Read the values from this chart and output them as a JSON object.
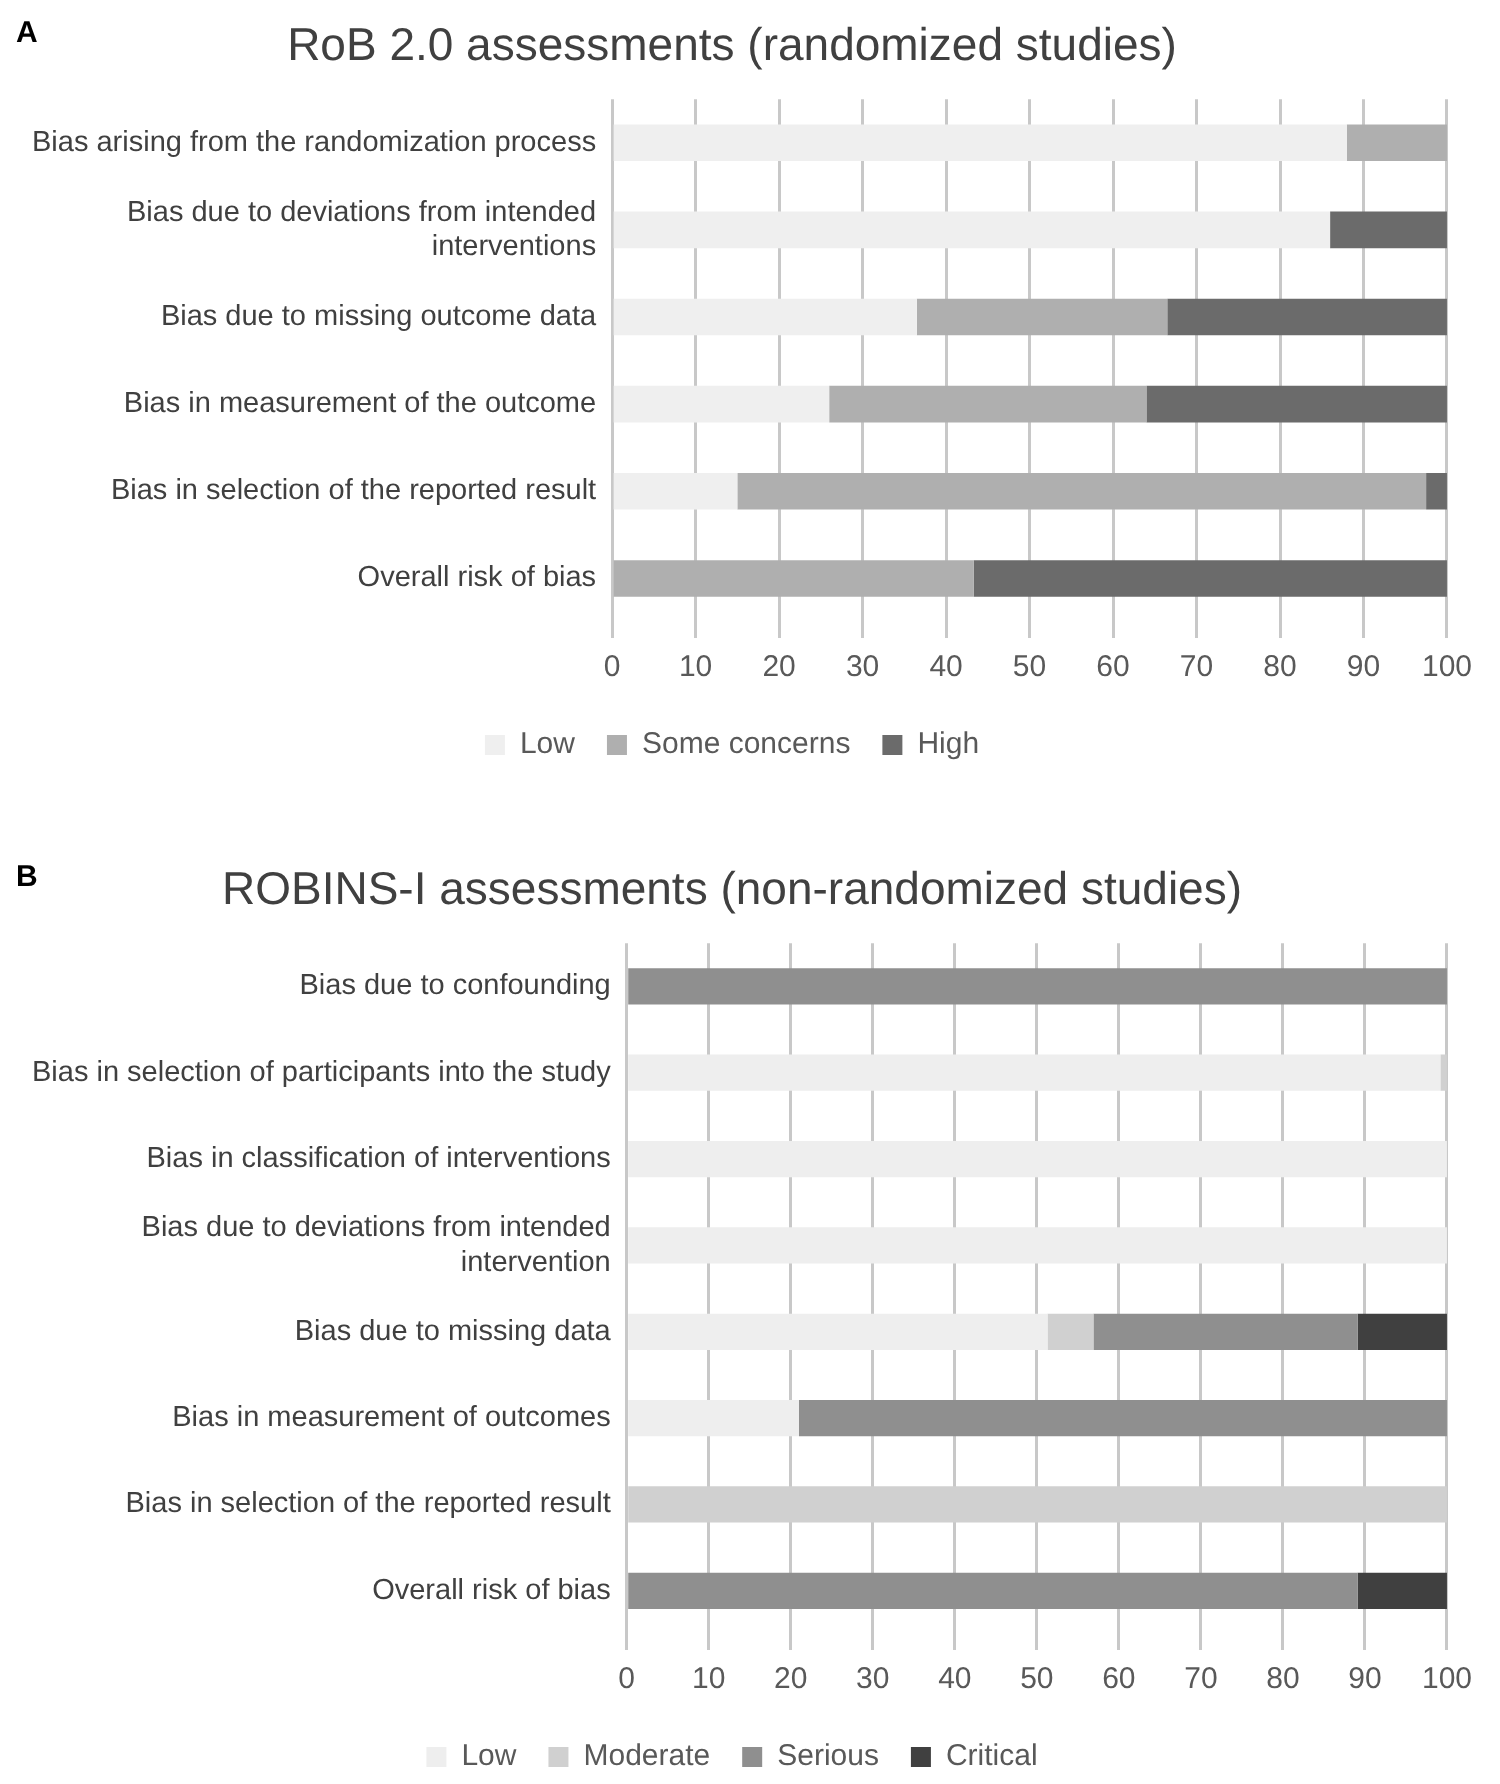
{
  "chart_data": [
    {
      "type": "bar",
      "orientation": "horizontal",
      "stacked": true,
      "title": "RoB 2.0 assessments (randomized studies)",
      "annotations": [
        "A"
      ],
      "categories": [
        "Bias arising from the randomization process",
        "Bias due to deviations from intended interventions",
        "Bias due to missing outcome data",
        "Bias in measurement of the outcome",
        "Bias in selection of the reported result",
        "Overall risk of bias"
      ],
      "series": [
        {
          "name": "Low",
          "color": "#efefef",
          "values": [
            88,
            86,
            36.5,
            26,
            15,
            0
          ]
        },
        {
          "name": "Some concerns",
          "color": "#afafaf",
          "values": [
            12,
            0,
            30,
            38,
            82.5,
            43.3
          ]
        },
        {
          "name": "High",
          "color": "#6b6b6b",
          "values": [
            0,
            14,
            33.5,
            36,
            2.5,
            56.7
          ]
        }
      ],
      "xlim": [
        0,
        100
      ],
      "xticks": [
        0,
        10,
        20,
        30,
        40,
        50,
        60,
        70,
        80,
        90,
        100
      ],
      "grid": "x",
      "legend": "bottom"
    },
    {
      "type": "bar",
      "orientation": "horizontal",
      "stacked": true,
      "title": "ROBINS-I assessments (non-randomized studies)",
      "annotations": [
        "B"
      ],
      "categories": [
        "Bias due to confounding",
        "Bias in selection of participants into the study",
        "Bias in classification of interventions",
        "Bias due to deviations from intended intervention",
        "Bias due to missing data",
        "Bias in measurement of outcomes",
        "Bias in selection of the reported result",
        "Overall risk of bias"
      ],
      "series": [
        {
          "name": "Low",
          "color": "#eeeeee",
          "values": [
            0,
            99.2,
            100,
            100,
            51.3,
            21,
            0,
            0
          ]
        },
        {
          "name": "Moderate",
          "color": "#d0d0d0",
          "values": [
            0,
            0.8,
            0,
            0,
            5.6,
            0,
            100,
            0
          ]
        },
        {
          "name": "Serious",
          "color": "#8f8f8f",
          "values": [
            100,
            0,
            0,
            0,
            32.2,
            79,
            0,
            89.1
          ]
        },
        {
          "name": "Critical",
          "color": "#404040",
          "values": [
            0,
            0,
            0,
            0,
            10.9,
            0,
            0,
            10.9
          ]
        }
      ],
      "xlim": [
        0,
        100
      ],
      "xticks": [
        0,
        10,
        20,
        30,
        40,
        50,
        60,
        70,
        80,
        90,
        100
      ],
      "grid": "x",
      "legend": "bottom"
    }
  ]
}
